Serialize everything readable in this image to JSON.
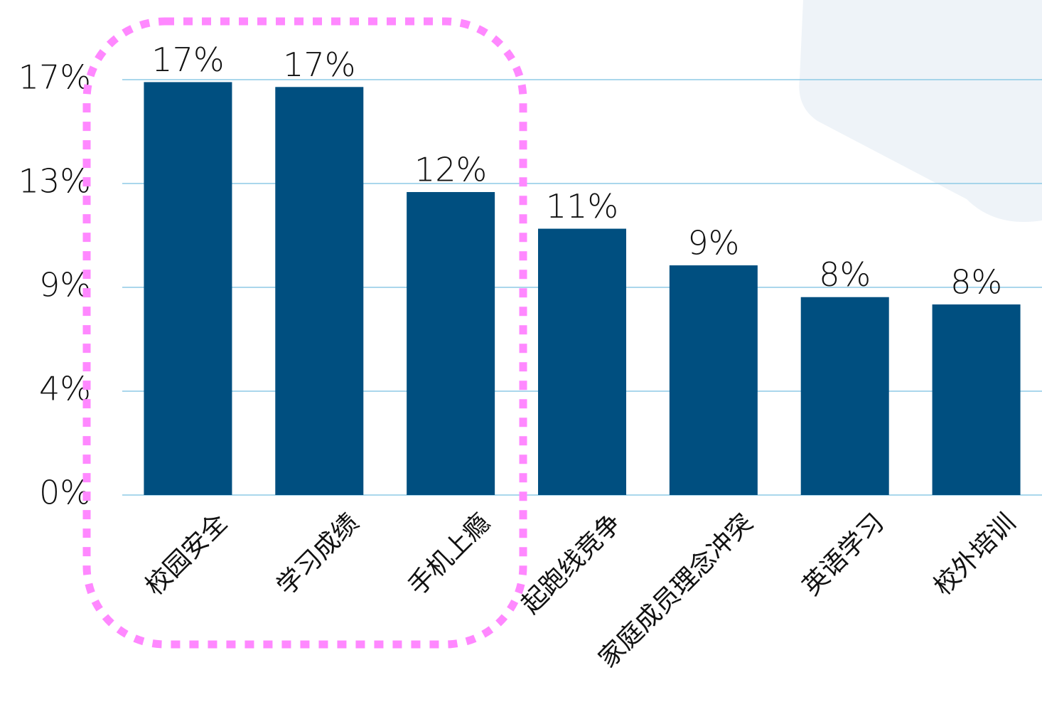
{
  "chart_data": {
    "type": "bar",
    "categories": [
      "校园安全",
      "学习成绩",
      "手机上瘾",
      "起跑线竞争",
      "家庭成员理念冲突",
      "英语学习",
      "校外培训"
    ],
    "values": [
      16.9,
      16.7,
      12.4,
      10.9,
      9.4,
      8.1,
      7.8
    ],
    "value_labels": [
      "17%",
      "17%",
      "12%",
      "11%",
      "9%",
      "8%",
      "8%"
    ],
    "color": "#004f80",
    "ylim": [
      0,
      17
    ],
    "yticks": [
      {
        "value": 0,
        "label": "0%"
      },
      {
        "value": 4.25,
        "label": "4%"
      },
      {
        "value": 8.5,
        "label": "9%"
      },
      {
        "value": 12.75,
        "label": "13%"
      },
      {
        "value": 17,
        "label": "17%"
      }
    ],
    "grid": true,
    "grid_color": "#8ecae6"
  }
}
